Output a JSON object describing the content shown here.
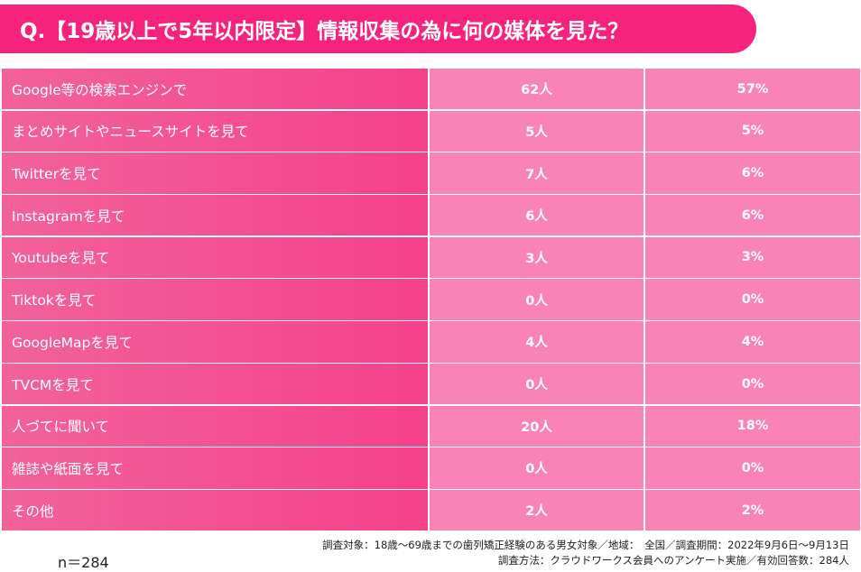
{
  "title": "Q.【19歳以上で5年以内限定】情報収集の為に何の媒体を見た？",
  "rows": [
    {
      "label": "Google等の検索エンジンで",
      "count": "62人",
      "percent": "57%"
    },
    {
      "label": "まとめサイトやニュースサイトを見て",
      "count": "5人",
      "percent": "5%"
    },
    {
      "label": "Twitterを見て",
      "count": "7人",
      "percent": "6%"
    },
    {
      "label": "Instagramを見て",
      "count": "6人",
      "percent": "6%"
    },
    {
      "label": "Youtubeを見て",
      "count": "3人",
      "percent": "3%"
    },
    {
      "label": "Tiktokを見て",
      "count": "0人",
      "percent": "0%"
    },
    {
      "label": "GoogleMapを見て",
      "count": "4人",
      "percent": "4%"
    },
    {
      "label": "TVCMを見て",
      "count": "0人",
      "percent": "0%"
    },
    {
      "label": "人づてに聞いて",
      "count": "20人",
      "percent": "18%"
    },
    {
      "label": "雑誌や紙面を見て",
      "count": "0人",
      "percent": "0%"
    },
    {
      "label": "その他",
      "count": "2人",
      "percent": "2%"
    }
  ],
  "sample_size": "n＝284",
  "notes": {
    "line1": "調査対象：18歳〜69歳までの歯列矯正経験のある男女対象／地域：　全国／調査期間：2022年9月6日〜9月13日",
    "line2": "調査方法：クラウドワークス会員へのアンケート実施／有効回答数：284人"
  },
  "colors": {
    "title_bg": "#f6237c",
    "label_cell": "#f5418a",
    "value_cell": "#f983b5"
  }
}
